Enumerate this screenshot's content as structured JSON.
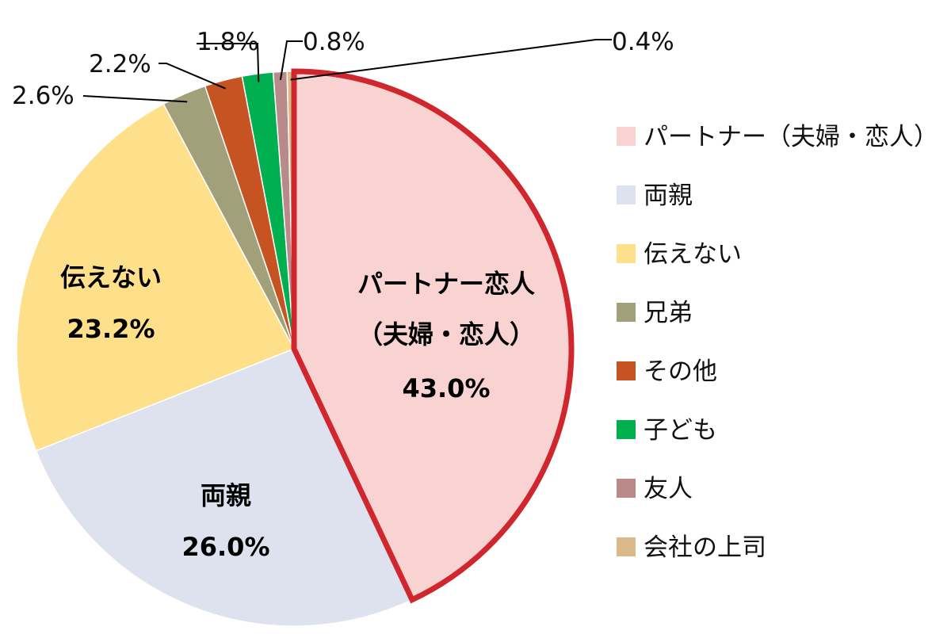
{
  "chart_data": {
    "type": "pie",
    "title": "",
    "unit": "%",
    "slices": [
      {
        "label": "パートナー（夫婦・恋人）",
        "value": 43.0,
        "value_label": "43.0%",
        "color": "#F8D3D2",
        "inside_label": [
          "パートナー恋人",
          "（夫婦・恋人）"
        ],
        "highlighted": true
      },
      {
        "label": "両親",
        "value": 26.0,
        "value_label": "26.0%",
        "color": "#DEE1EE",
        "inside_label": [
          "両親"
        ]
      },
      {
        "label": "伝えない",
        "value": 23.2,
        "value_label": "23.2%",
        "color": "#FEDF8A",
        "inside_label": [
          "伝えない"
        ]
      },
      {
        "label": "兄弟",
        "value": 2.6,
        "value_label": "2.6%",
        "color": "#A2A07A"
      },
      {
        "label": "その他",
        "value": 2.2,
        "value_label": "2.2%",
        "color": "#C65423"
      },
      {
        "label": "子ども",
        "value": 1.8,
        "value_label": "1.8%",
        "color": "#00B050"
      },
      {
        "label": "友人",
        "value": 0.8,
        "value_label": "0.8%",
        "color": "#B98A8A"
      },
      {
        "label": "会社の上司",
        "value": 0.4,
        "value_label": "0.4%",
        "color": "#D9B98A"
      }
    ],
    "highlight_color": "#D0262D",
    "legend_position": "right"
  }
}
